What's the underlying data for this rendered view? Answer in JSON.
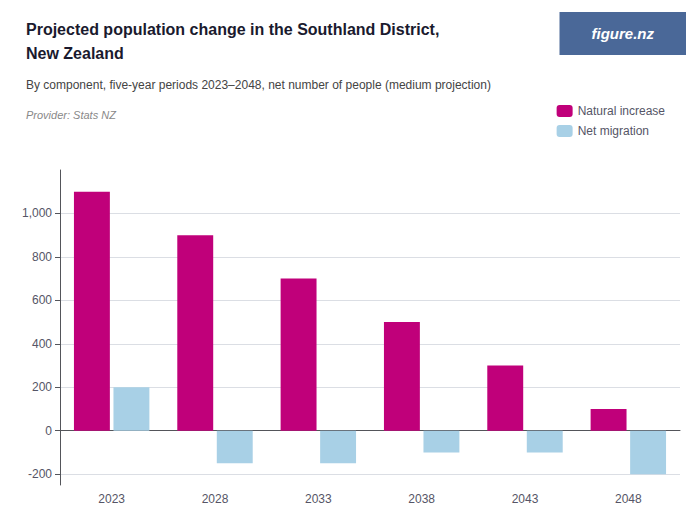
{
  "chart_data": {
    "type": "bar",
    "title": "Projected population change in the Southland District,\nNew Zealand",
    "subtitle": "By component, five-year periods 2023–2048, net number of people (medium projection)",
    "annotations": [
      "Provider: Stats NZ",
      "figure.nz"
    ],
    "categories": [
      "2023",
      "2028",
      "2033",
      "2038",
      "2043",
      "2048"
    ],
    "series": [
      {
        "name": "Natural increase",
        "color": "#c0007a",
        "values": [
          1100,
          900,
          700,
          500,
          300,
          100
        ]
      },
      {
        "name": "Net migration",
        "color": "#a8d0e6",
        "values": [
          200,
          -150,
          -150,
          -100,
          -100,
          -200
        ]
      }
    ],
    "ylim": [
      -250,
      1200
    ],
    "yticks": [
      -200,
      0,
      200,
      400,
      600,
      800,
      {
        "value": 1000,
        "label": "1,000"
      }
    ],
    "grid": true,
    "legend": "upper right"
  }
}
